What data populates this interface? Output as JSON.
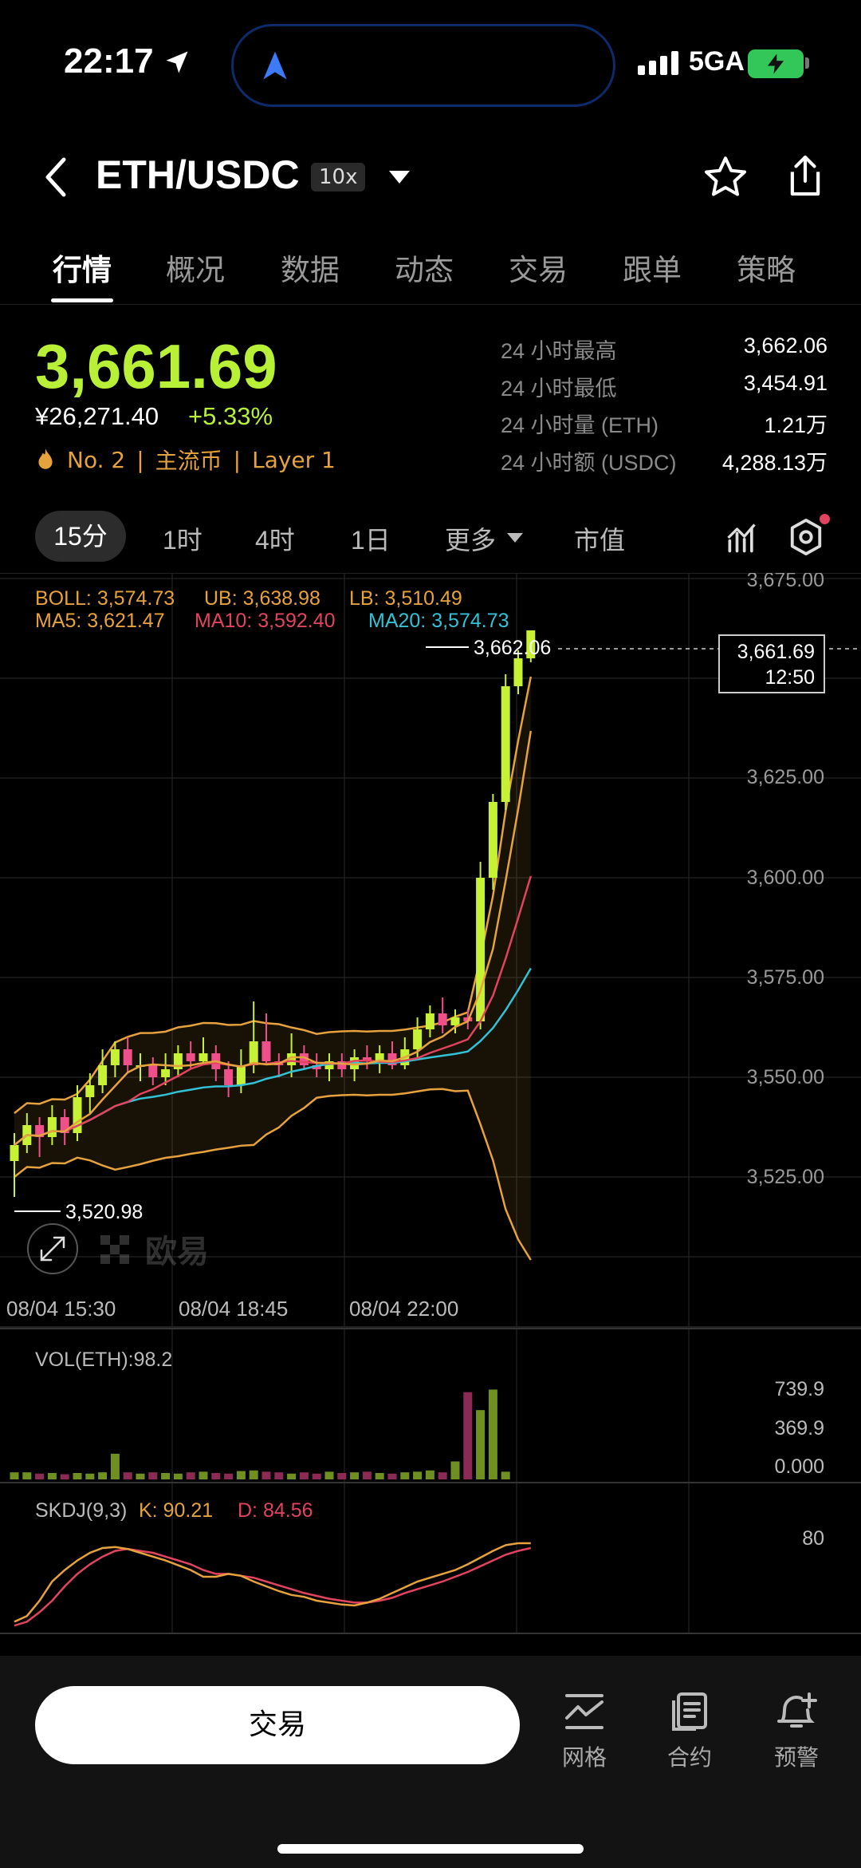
{
  "status": {
    "time": "22:17",
    "network": "5GA"
  },
  "header": {
    "pair": "ETH/USDC",
    "leverage": "10x"
  },
  "tabs": [
    "行情",
    "概况",
    "数据",
    "动态",
    "交易",
    "跟单",
    "策略"
  ],
  "price": {
    "last": "3,661.69",
    "cny": "¥26,271.40",
    "change": "+5.33%",
    "rank": "No. 2",
    "tag1": "主流币",
    "tag2": "Layer 1"
  },
  "stats": [
    {
      "label": "24 小时最高",
      "value": "3,662.06"
    },
    {
      "label": "24 小时最低",
      "value": "3,454.91"
    },
    {
      "label": "24 小时量 (ETH)",
      "value": "1.21万"
    },
    {
      "label": "24 小时额 (USDC)",
      "value": "4,288.13万"
    }
  ],
  "intervals": [
    "15分",
    "1时",
    "4时",
    "1日",
    "更多",
    "市值"
  ],
  "chart_data": {
    "type": "candlestick",
    "indicators": {
      "boll_line": "BOLL: 3,574.73",
      "ub": "UB: 3,638.98",
      "lb": "LB: 3,510.49",
      "ma5": "MA5: 3,621.47",
      "ma10": "MA10: 3,592.40",
      "ma20": "MA20: 3,574.73"
    },
    "y_ticks": [
      "3,675.00",
      "3,625.00",
      "3,600.00",
      "3,575.00",
      "3,550.00",
      "3,525.00"
    ],
    "ylim": [
      3507,
      3678
    ],
    "x_ticks": [
      "08/04 15:30",
      "08/04 18:45",
      "08/04 22:00"
    ],
    "high_label": "3,662.06",
    "low_label": "3,520.98",
    "current_price": "3,661.69",
    "countdown": "12:50",
    "candles": [
      {
        "o": 3529,
        "c": 3533,
        "h": 3536,
        "l": 3520
      },
      {
        "o": 3533,
        "c": 3538,
        "h": 3541,
        "l": 3531
      },
      {
        "o": 3538,
        "c": 3535,
        "h": 3540,
        "l": 3530
      },
      {
        "o": 3535,
        "c": 3540,
        "h": 3543,
        "l": 3533
      },
      {
        "o": 3540,
        "c": 3536,
        "h": 3542,
        "l": 3533
      },
      {
        "o": 3536,
        "c": 3545,
        "h": 3548,
        "l": 3534
      },
      {
        "o": 3545,
        "c": 3548,
        "h": 3551,
        "l": 3541
      },
      {
        "o": 3548,
        "c": 3553,
        "h": 3557,
        "l": 3546
      },
      {
        "o": 3553,
        "c": 3557,
        "h": 3559,
        "l": 3550
      },
      {
        "o": 3557,
        "c": 3553,
        "h": 3560,
        "l": 3551
      },
      {
        "o": 3553,
        "c": 3553,
        "h": 3556,
        "l": 3549
      },
      {
        "o": 3553,
        "c": 3550,
        "h": 3555,
        "l": 3548
      },
      {
        "o": 3550,
        "c": 3552,
        "h": 3556,
        "l": 3548
      },
      {
        "o": 3552,
        "c": 3556,
        "h": 3558,
        "l": 3550
      },
      {
        "o": 3556,
        "c": 3554,
        "h": 3559,
        "l": 3552
      },
      {
        "o": 3554,
        "c": 3556,
        "h": 3560,
        "l": 3553
      },
      {
        "o": 3556,
        "c": 3552,
        "h": 3558,
        "l": 3549
      },
      {
        "o": 3552,
        "c": 3548,
        "h": 3554,
        "l": 3545
      },
      {
        "o": 3548,
        "c": 3553,
        "h": 3557,
        "l": 3546
      },
      {
        "o": 3553,
        "c": 3559,
        "h": 3569,
        "l": 3551
      },
      {
        "o": 3559,
        "c": 3554,
        "h": 3566,
        "l": 3553
      },
      {
        "o": 3554,
        "c": 3553,
        "h": 3556,
        "l": 3550
      },
      {
        "o": 3553,
        "c": 3556,
        "h": 3561,
        "l": 3550
      },
      {
        "o": 3556,
        "c": 3553,
        "h": 3558,
        "l": 3552
      },
      {
        "o": 3553,
        "c": 3552,
        "h": 3556,
        "l": 3550
      },
      {
        "o": 3552,
        "c": 3554,
        "h": 3556,
        "l": 3549
      },
      {
        "o": 3554,
        "c": 3552,
        "h": 3556,
        "l": 3550
      },
      {
        "o": 3552,
        "c": 3555,
        "h": 3557,
        "l": 3549
      },
      {
        "o": 3555,
        "c": 3554,
        "h": 3558,
        "l": 3552
      },
      {
        "o": 3554,
        "c": 3556,
        "h": 3558,
        "l": 3551
      },
      {
        "o": 3556,
        "c": 3553,
        "h": 3559,
        "l": 3552
      },
      {
        "o": 3553,
        "c": 3557,
        "h": 3560,
        "l": 3552
      },
      {
        "o": 3557,
        "c": 3562,
        "h": 3565,
        "l": 3555
      },
      {
        "o": 3562,
        "c": 3566,
        "h": 3568,
        "l": 3560
      },
      {
        "o": 3566,
        "c": 3563,
        "h": 3570,
        "l": 3561
      },
      {
        "o": 3563,
        "c": 3565,
        "h": 3567,
        "l": 3561
      },
      {
        "o": 3565,
        "c": 3564,
        "h": 3567,
        "l": 3562
      },
      {
        "o": 3564,
        "c": 3600,
        "h": 3604,
        "l": 3562
      },
      {
        "o": 3600,
        "c": 3619,
        "h": 3621,
        "l": 3597
      },
      {
        "o": 3619,
        "c": 3648,
        "h": 3651,
        "l": 3617
      },
      {
        "o": 3648,
        "c": 3655,
        "h": 3657,
        "l": 3646
      },
      {
        "o": 3655,
        "c": 3662,
        "h": 3662,
        "l": 3654
      }
    ],
    "volume": {
      "label": "VOL(ETH):98.2",
      "y_ticks": [
        "739.9",
        "369.9",
        "0.000"
      ],
      "max": 739.9,
      "values": [
        55,
        55,
        45,
        50,
        40,
        50,
        45,
        55,
        200,
        55,
        45,
        55,
        50,
        45,
        55,
        60,
        50,
        45,
        65,
        70,
        60,
        55,
        45,
        55,
        45,
        60,
        50,
        55,
        60,
        50,
        45,
        55,
        60,
        70,
        55,
        140,
        680,
        540,
        700,
        60,
        0,
        0
      ]
    },
    "skdj": {
      "label": "SKDJ(9,3)",
      "k": "K: 90.21",
      "d": "D: 84.56",
      "y_tick": "80",
      "k_values": [
        8,
        14,
        30,
        50,
        62,
        72,
        80,
        85,
        86,
        84,
        80,
        76,
        72,
        67,
        62,
        55,
        55,
        58,
        56,
        50,
        45,
        40,
        36,
        34,
        30,
        28,
        26,
        25,
        28,
        32,
        38,
        44,
        50,
        54,
        58,
        62,
        68,
        75,
        82,
        88,
        90,
        90
      ],
      "d_values": [
        4,
        8,
        18,
        30,
        45,
        58,
        68,
        76,
        82,
        84,
        82,
        80,
        76,
        72,
        68,
        62,
        58,
        58,
        56,
        54,
        50,
        46,
        42,
        38,
        35,
        32,
        30,
        28,
        28,
        30,
        33,
        38,
        42,
        46,
        50,
        55,
        60,
        66,
        72,
        78,
        82,
        85
      ]
    }
  },
  "bottom": {
    "trade": "交易",
    "grid": "网格",
    "contract": "合约",
    "alert": "预警"
  }
}
